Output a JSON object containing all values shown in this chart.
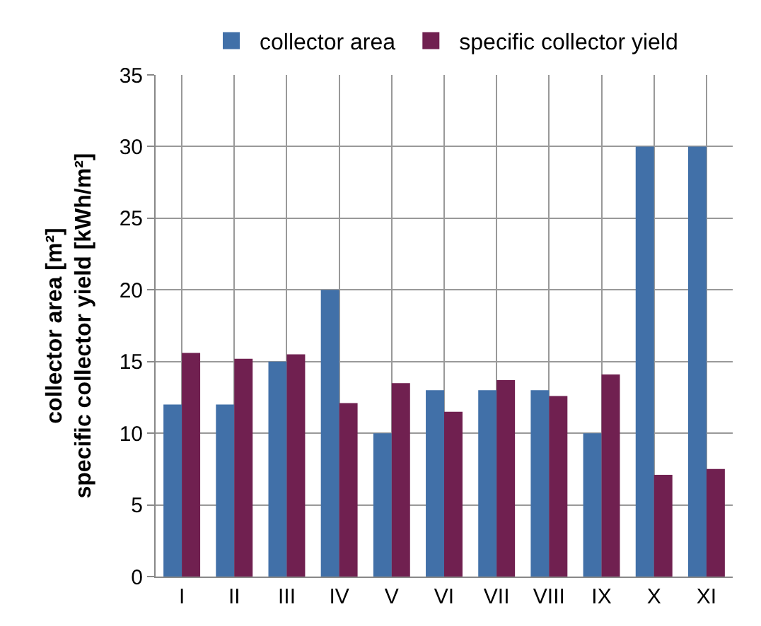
{
  "chart_data": {
    "type": "bar",
    "ylabel": "collector area [m²]\nspecific collector yield [kWh/m²]",
    "categories": [
      "I",
      "II",
      "III",
      "IV",
      "V",
      "VI",
      "VII",
      "VIII",
      "IX",
      "X",
      "XI"
    ],
    "series": [
      {
        "name": "collector area",
        "color": "#4170a8",
        "values": [
          12,
          12,
          15,
          20,
          10,
          13,
          13,
          13,
          10,
          30,
          30
        ]
      },
      {
        "name": "specific collector yield",
        "color": "#702050",
        "values": [
          15.6,
          15.2,
          15.5,
          12.1,
          13.5,
          11.5,
          13.7,
          12.6,
          14.1,
          7.1,
          7.5
        ]
      }
    ],
    "ylim": [
      0,
      35
    ],
    "yticks": [
      0,
      5,
      10,
      15,
      20,
      25,
      30,
      35
    ],
    "grid": true,
    "legend": "top"
  }
}
